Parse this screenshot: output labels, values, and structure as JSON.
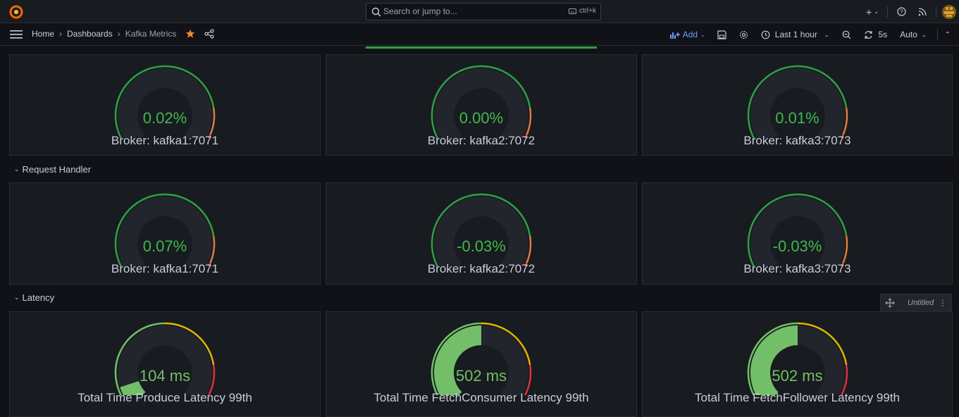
{
  "topbar": {
    "search_placeholder": "Search or jump to...",
    "search_shortcut": "ctrl+k"
  },
  "breadcrumb": {
    "home": "Home",
    "dashboards": "Dashboards",
    "current": "Kafka Metrics"
  },
  "toolbar": {
    "add_label": "Add",
    "time_range": "Last 1 hour",
    "refresh_interval": "5s",
    "refresh_mode": "Auto"
  },
  "colors": {
    "green": "#2ea043",
    "text_green": "#3fb950",
    "latency_green": "#73bf69",
    "orange": "#e07c3c",
    "red": "#e02f44",
    "yellow": "#e0b400"
  },
  "rows": [
    {
      "title": "",
      "panels": [
        {
          "value": "0.02%",
          "label": "Broker: kafka1:7071",
          "fill_fraction": 0.0002
        },
        {
          "value": "0.00%",
          "label": "Broker: kafka2:7072",
          "fill_fraction": 0.0
        },
        {
          "value": "0.01%",
          "label": "Broker: kafka3:7073",
          "fill_fraction": 0.0001
        }
      ]
    },
    {
      "title": "Request Handler",
      "panels": [
        {
          "value": "0.07%",
          "label": "Broker: kafka1:7071",
          "fill_fraction": 0.0007
        },
        {
          "value": "-0.03%",
          "label": "Broker: kafka2:7072",
          "fill_fraction": 0.0
        },
        {
          "value": "-0.03%",
          "label": "Broker: kafka3:7073",
          "fill_fraction": 0.0
        }
      ]
    },
    {
      "title": "Latency",
      "panels": [
        {
          "value": "104 ms",
          "label": "Total Time Produce Latency 99th",
          "fill_fraction": 0.1
        },
        {
          "value": "502 ms",
          "label": "Total Time FetchConsumer Latency 99th",
          "fill_fraction": 0.5
        },
        {
          "value": "502 ms",
          "label": "Total Time FetchFollower Latency 99th",
          "fill_fraction": 0.5
        }
      ]
    }
  ],
  "floating_panel": {
    "title": "Untitled"
  }
}
